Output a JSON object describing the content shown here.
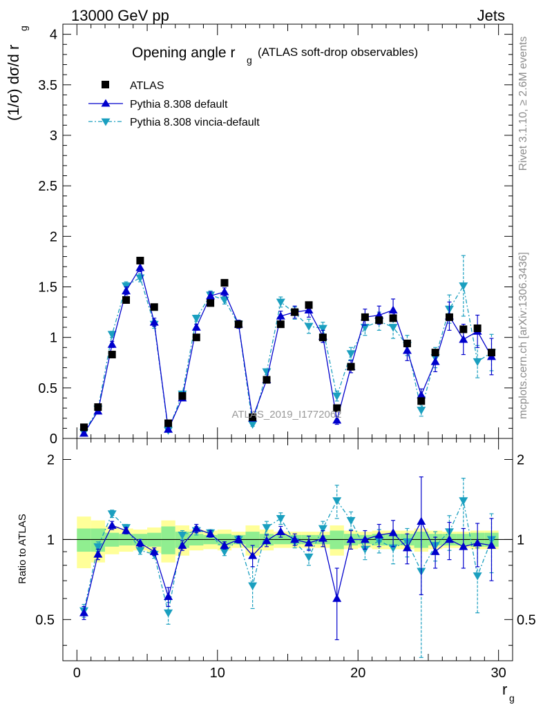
{
  "header": {
    "left": "13000 GeV pp",
    "right": "Jets"
  },
  "side_text": {
    "rivet": "Rivet 3.1.10, ≥ 2.6M events",
    "mcplots": "mcplots.cern.ch [arXiv:1306.3436]"
  },
  "watermark": "ATLAS_2019_I1772062",
  "colors": {
    "atlas": "#000000",
    "default": "#0000cc",
    "vincia": "#1a9fbf",
    "band_green": "#90ee90",
    "band_yellow": "#ffff99"
  },
  "chart_data": [
    {
      "type": "scatter",
      "title": "Opening angle r",
      "title_sub": "g",
      "title_suffix": "(ATLAS soft-drop observables)",
      "ylabel": "(1/σ) dσ/d r",
      "ylabel_sub": "g",
      "xlim": [
        -1,
        31
      ],
      "ylim": [
        0,
        4.1
      ],
      "yticks": [
        "0",
        "0.5",
        "1",
        "1.5",
        "2",
        "2.5",
        "3",
        "3.5",
        "4"
      ],
      "legend": [
        "ATLAS",
        "Pythia 8.308 default",
        "Pythia 8.308 vincia-default"
      ],
      "legend_position": "top-left",
      "x": [
        0.5,
        1.5,
        2.5,
        3.5,
        4.5,
        5.5,
        6.5,
        7.5,
        8.5,
        9.5,
        10.5,
        11.5,
        12.5,
        13.5,
        14.5,
        15.5,
        16.5,
        17.5,
        18.5,
        19.5,
        20.5,
        21.5,
        22.5,
        23.5,
        24.5,
        25.5,
        26.5,
        27.5,
        28.5,
        29.5
      ],
      "series": [
        {
          "name": "ATLAS",
          "values": [
            0.11,
            0.31,
            0.83,
            1.37,
            1.76,
            1.3,
            0.15,
            0.42,
            1.0,
            1.34,
            1.54,
            1.13,
            0.21,
            0.58,
            1.13,
            1.25,
            1.32,
            1.0,
            0.3,
            0.71,
            1.2,
            1.17,
            1.19,
            0.94,
            0.37,
            0.85,
            1.2,
            1.08,
            1.09,
            0.85
          ]
        },
        {
          "name": "Pythia 8.308 default",
          "values": [
            0.05,
            0.27,
            0.93,
            1.46,
            1.69,
            1.15,
            0.09,
            0.4,
            1.1,
            1.41,
            1.45,
            1.13,
            0.2,
            0.58,
            1.21,
            1.25,
            1.27,
            1.01,
            0.18,
            0.71,
            1.2,
            1.22,
            1.27,
            0.87,
            0.43,
            0.76,
            1.21,
            0.98,
            1.06,
            0.81
          ]
        },
        {
          "name": "Pythia 8.308 vincia-default",
          "values": [
            0.06,
            0.29,
            1.03,
            1.51,
            1.59,
            1.13,
            0.08,
            0.44,
            1.19,
            1.42,
            1.37,
            1.13,
            0.14,
            0.66,
            1.35,
            1.24,
            1.11,
            1.09,
            0.42,
            0.84,
            1.1,
            1.16,
            1.1,
            0.92,
            0.28,
            0.8,
            1.28,
            1.51,
            0.76,
            0.85
          ]
        }
      ],
      "errors": {
        "Pythia 8.308 default": [
          0.01,
          0.02,
          0.03,
          0.04,
          0.04,
          0.04,
          0.01,
          0.02,
          0.03,
          0.04,
          0.04,
          0.04,
          0.02,
          0.03,
          0.05,
          0.06,
          0.07,
          0.06,
          0.04,
          0.06,
          0.08,
          0.09,
          0.11,
          0.1,
          0.06,
          0.1,
          0.14,
          0.15,
          0.16,
          0.18
        ],
        "Pythia 8.308 vincia-default": [
          0.01,
          0.02,
          0.03,
          0.04,
          0.04,
          0.04,
          0.01,
          0.02,
          0.03,
          0.04,
          0.04,
          0.04,
          0.02,
          0.03,
          0.05,
          0.06,
          0.07,
          0.06,
          0.05,
          0.06,
          0.08,
          0.09,
          0.11,
          0.1,
          0.06,
          0.1,
          0.14,
          0.3,
          0.16,
          0.18
        ]
      }
    },
    {
      "type": "scatter",
      "ylabel": "Ratio to ATLAS",
      "xlabel": "r",
      "xlabel_sub": "g",
      "xlim": [
        -1,
        31
      ],
      "ylim": [
        0.35,
        2.4
      ],
      "ylog": true,
      "yticks": [
        "0.5",
        "1",
        "2"
      ],
      "xticks": [
        "0",
        "10",
        "20",
        "30"
      ],
      "reference_line": 1,
      "x": [
        0.5,
        1.5,
        2.5,
        3.5,
        4.5,
        5.5,
        6.5,
        7.5,
        8.5,
        9.5,
        10.5,
        11.5,
        12.5,
        13.5,
        14.5,
        15.5,
        16.5,
        17.5,
        18.5,
        19.5,
        20.5,
        21.5,
        22.5,
        23.5,
        24.5,
        25.5,
        26.5,
        27.5,
        28.5,
        29.5
      ],
      "band_inner": [
        0.1,
        0.1,
        0.06,
        0.05,
        0.05,
        0.06,
        0.12,
        0.07,
        0.05,
        0.04,
        0.05,
        0.04,
        0.07,
        0.05,
        0.04,
        0.04,
        0.04,
        0.04,
        0.08,
        0.05,
        0.04,
        0.05,
        0.05,
        0.05,
        0.07,
        0.05,
        0.05,
        0.05,
        0.06,
        0.06
      ],
      "band_outer": [
        0.22,
        0.18,
        0.12,
        0.1,
        0.09,
        0.11,
        0.18,
        0.13,
        0.09,
        0.08,
        0.09,
        0.07,
        0.13,
        0.09,
        0.07,
        0.07,
        0.07,
        0.07,
        0.13,
        0.08,
        0.07,
        0.08,
        0.08,
        0.08,
        0.1,
        0.08,
        0.07,
        0.07,
        0.08,
        0.08
      ],
      "series": [
        {
          "name": "Pythia 8.308 default",
          "values": [
            0.53,
            0.88,
            1.13,
            1.08,
            0.97,
            0.9,
            0.61,
            0.95,
            1.1,
            1.05,
            0.95,
            1.0,
            0.87,
            0.99,
            1.07,
            1.0,
            0.97,
            1.01,
            0.6,
            1.0,
            1.0,
            1.04,
            1.06,
            0.93,
            1.17,
            0.9,
            1.0,
            0.94,
            0.97,
            0.95
          ]
        },
        {
          "name": "Pythia 8.308 vincia-default",
          "values": [
            0.54,
            0.94,
            1.25,
            1.11,
            0.91,
            0.88,
            0.53,
            1.04,
            1.08,
            1.06,
            0.9,
            1.0,
            0.67,
            1.11,
            1.2,
            0.98,
            0.86,
            1.1,
            1.4,
            1.18,
            0.92,
            0.99,
            0.93,
            0.98,
            0.76,
            0.95,
            1.07,
            1.4,
            0.73,
            1.0
          ]
        }
      ],
      "errors": {
        "Pythia 8.308 default": [
          0.03,
          0.04,
          0.04,
          0.03,
          0.03,
          0.03,
          0.05,
          0.04,
          0.04,
          0.03,
          0.03,
          0.03,
          0.08,
          0.05,
          0.05,
          0.05,
          0.06,
          0.07,
          0.18,
          0.08,
          0.08,
          0.1,
          0.12,
          0.12,
          0.55,
          0.12,
          0.16,
          0.16,
          0.18,
          0.25
        ],
        "Pythia 8.308 vincia-default": [
          0.03,
          0.04,
          0.04,
          0.03,
          0.03,
          0.03,
          0.05,
          0.04,
          0.04,
          0.03,
          0.03,
          0.03,
          0.12,
          0.06,
          0.06,
          0.05,
          0.06,
          0.07,
          0.2,
          0.09,
          0.08,
          0.1,
          0.12,
          0.12,
          0.4,
          0.12,
          0.16,
          0.3,
          0.2,
          0.25
        ]
      }
    }
  ]
}
